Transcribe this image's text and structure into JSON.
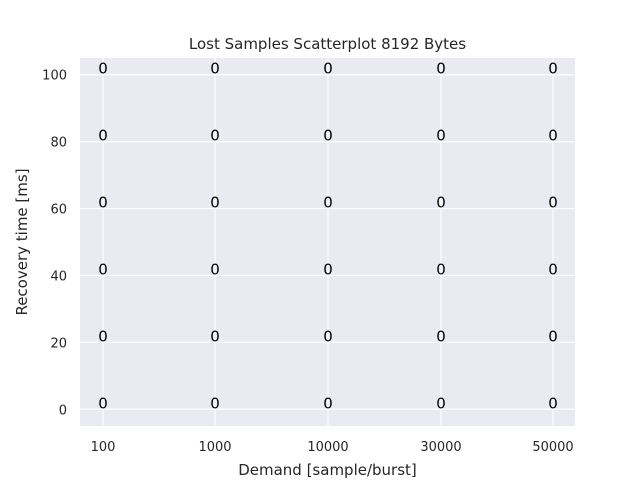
{
  "chart_data": {
    "type": "scatter",
    "title": "Lost Samples Scatterplot 8192 Bytes",
    "xlabel": "Demand [sample/burst]",
    "ylabel": "Recovery time [ms]",
    "x_categories": [
      "100",
      "1000",
      "10000",
      "30000",
      "50000"
    ],
    "y_ticks": [
      0,
      20,
      40,
      60,
      80,
      100
    ],
    "ylim": [
      -5,
      105
    ],
    "grid": true,
    "background_color": "#eaeaf2",
    "grid_color": "#ffffff",
    "points": [
      {
        "x": "100",
        "y": 0,
        "label": "0"
      },
      {
        "x": "100",
        "y": 20,
        "label": "0"
      },
      {
        "x": "100",
        "y": 40,
        "label": "0"
      },
      {
        "x": "100",
        "y": 60,
        "label": "0"
      },
      {
        "x": "100",
        "y": 80,
        "label": "0"
      },
      {
        "x": "100",
        "y": 100,
        "label": "0"
      },
      {
        "x": "1000",
        "y": 0,
        "label": "0"
      },
      {
        "x": "1000",
        "y": 20,
        "label": "0"
      },
      {
        "x": "1000",
        "y": 40,
        "label": "0"
      },
      {
        "x": "1000",
        "y": 60,
        "label": "0"
      },
      {
        "x": "1000",
        "y": 80,
        "label": "0"
      },
      {
        "x": "1000",
        "y": 100,
        "label": "0"
      },
      {
        "x": "10000",
        "y": 0,
        "label": "0"
      },
      {
        "x": "10000",
        "y": 20,
        "label": "0"
      },
      {
        "x": "10000",
        "y": 40,
        "label": "0"
      },
      {
        "x": "10000",
        "y": 60,
        "label": "0"
      },
      {
        "x": "10000",
        "y": 80,
        "label": "0"
      },
      {
        "x": "10000",
        "y": 100,
        "label": "0"
      },
      {
        "x": "30000",
        "y": 0,
        "label": "0"
      },
      {
        "x": "30000",
        "y": 20,
        "label": "0"
      },
      {
        "x": "30000",
        "y": 40,
        "label": "0"
      },
      {
        "x": "30000",
        "y": 60,
        "label": "0"
      },
      {
        "x": "30000",
        "y": 80,
        "label": "0"
      },
      {
        "x": "30000",
        "y": 100,
        "label": "0"
      },
      {
        "x": "50000",
        "y": 0,
        "label": "0"
      },
      {
        "x": "50000",
        "y": 20,
        "label": "0"
      },
      {
        "x": "50000",
        "y": 40,
        "label": "0"
      },
      {
        "x": "50000",
        "y": 60,
        "label": "0"
      },
      {
        "x": "50000",
        "y": 80,
        "label": "0"
      },
      {
        "x": "50000",
        "y": 100,
        "label": "0"
      }
    ]
  }
}
